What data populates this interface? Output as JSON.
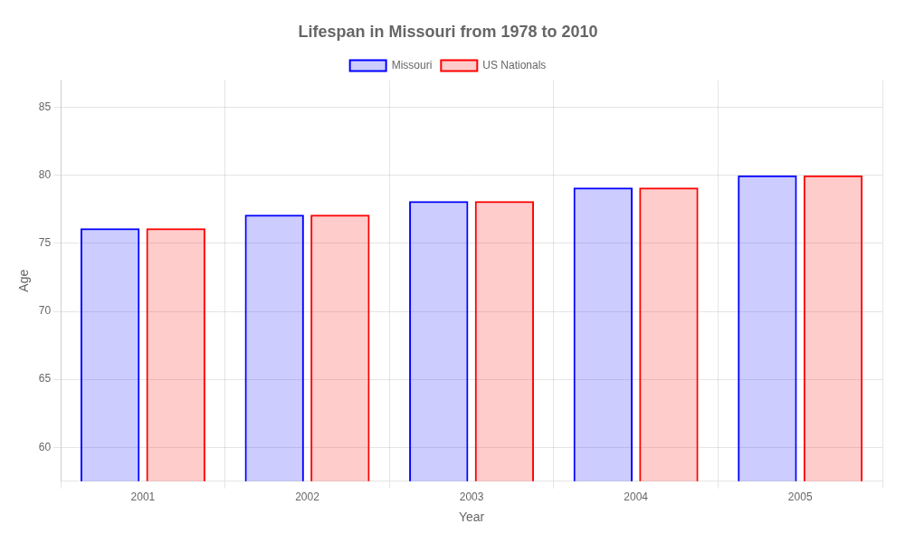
{
  "chart_data": {
    "type": "bar",
    "title": "Lifespan in Missouri from 1978 to 2010",
    "xlabel": "Year",
    "ylabel": "Age",
    "categories": [
      2001,
      2002,
      2003,
      2004,
      2005
    ],
    "series": [
      {
        "name": "Missouri",
        "color": "#0000ff",
        "values": [
          76.1,
          77.1,
          78.1,
          79.1,
          80.0
        ]
      },
      {
        "name": "US Nationals",
        "color": "#ff0000",
        "values": [
          76.1,
          77.1,
          78.1,
          79.1,
          80.0
        ]
      }
    ],
    "ylim": [
      57.5,
      87
    ],
    "yticks": [
      60,
      65,
      70,
      75,
      80,
      85
    ],
    "grid": true,
    "legend": "top"
  }
}
